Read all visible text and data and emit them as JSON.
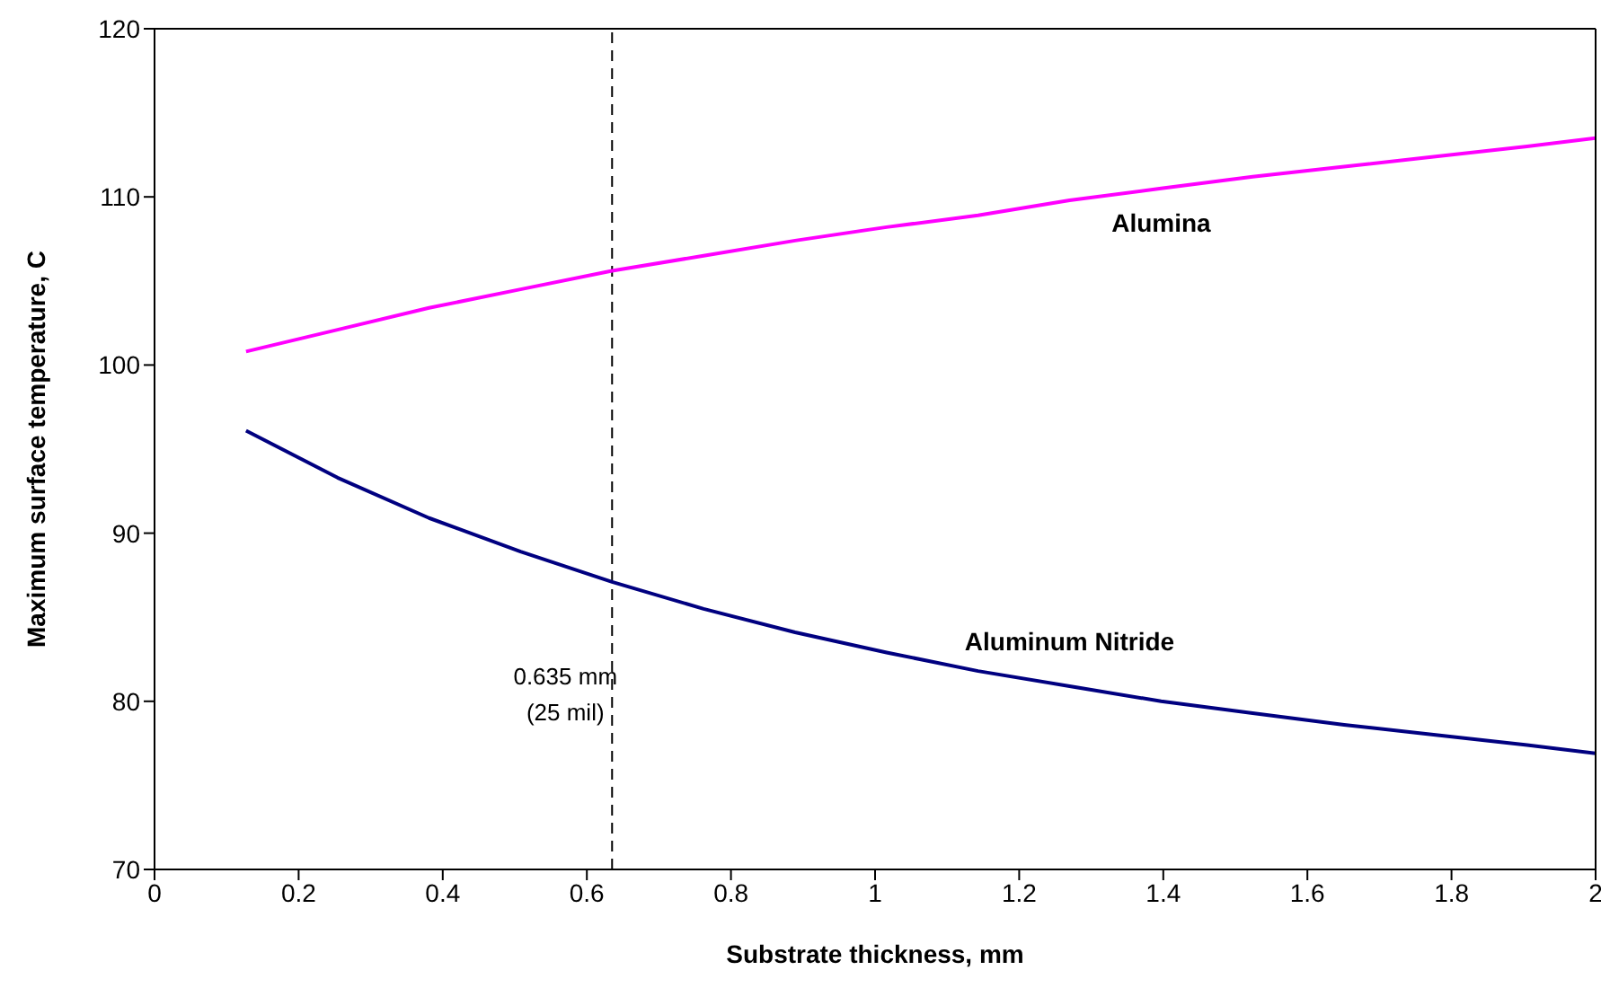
{
  "chart_data": {
    "type": "line",
    "xlabel": "Substrate thickness, mm",
    "ylabel": "Maximum surface temperature, C",
    "x": [
      0.127,
      0.254,
      0.381,
      0.508,
      0.635,
      0.762,
      0.889,
      1.016,
      1.143,
      1.27,
      1.397,
      1.524,
      1.651,
      1.778,
      1.905,
      2.0
    ],
    "series": [
      {
        "name": "Alumina",
        "color": "#ff00ff",
        "values": [
          100.8,
          102.1,
          103.4,
          104.5,
          105.6,
          106.5,
          107.4,
          108.2,
          108.9,
          109.8,
          110.5,
          111.2,
          111.8,
          112.4,
          113.0,
          113.5
        ]
      },
      {
        "name": "Aluminum Nitride",
        "color": "#000080",
        "values": [
          96.1,
          93.3,
          90.9,
          88.9,
          87.1,
          85.5,
          84.1,
          82.9,
          81.8,
          80.9,
          80.0,
          79.3,
          78.6,
          78.0,
          77.4,
          76.9
        ]
      }
    ],
    "xlim": [
      0,
      2
    ],
    "xticks": [
      0,
      0.2,
      0.4,
      0.6,
      0.8,
      1,
      1.2,
      1.4,
      1.6,
      1.8,
      2
    ],
    "ylim": [
      70,
      120
    ],
    "yticks": [
      70,
      80,
      90,
      100,
      110,
      120
    ],
    "ref_lines": [
      {
        "axis": "x",
        "value": 0.635,
        "label": "0.635 mm\n(25 mil)",
        "color": "#000000",
        "line_style": "dashed"
      }
    ],
    "grid": false,
    "legend": false,
    "marker": "none",
    "line_style": "solid"
  }
}
